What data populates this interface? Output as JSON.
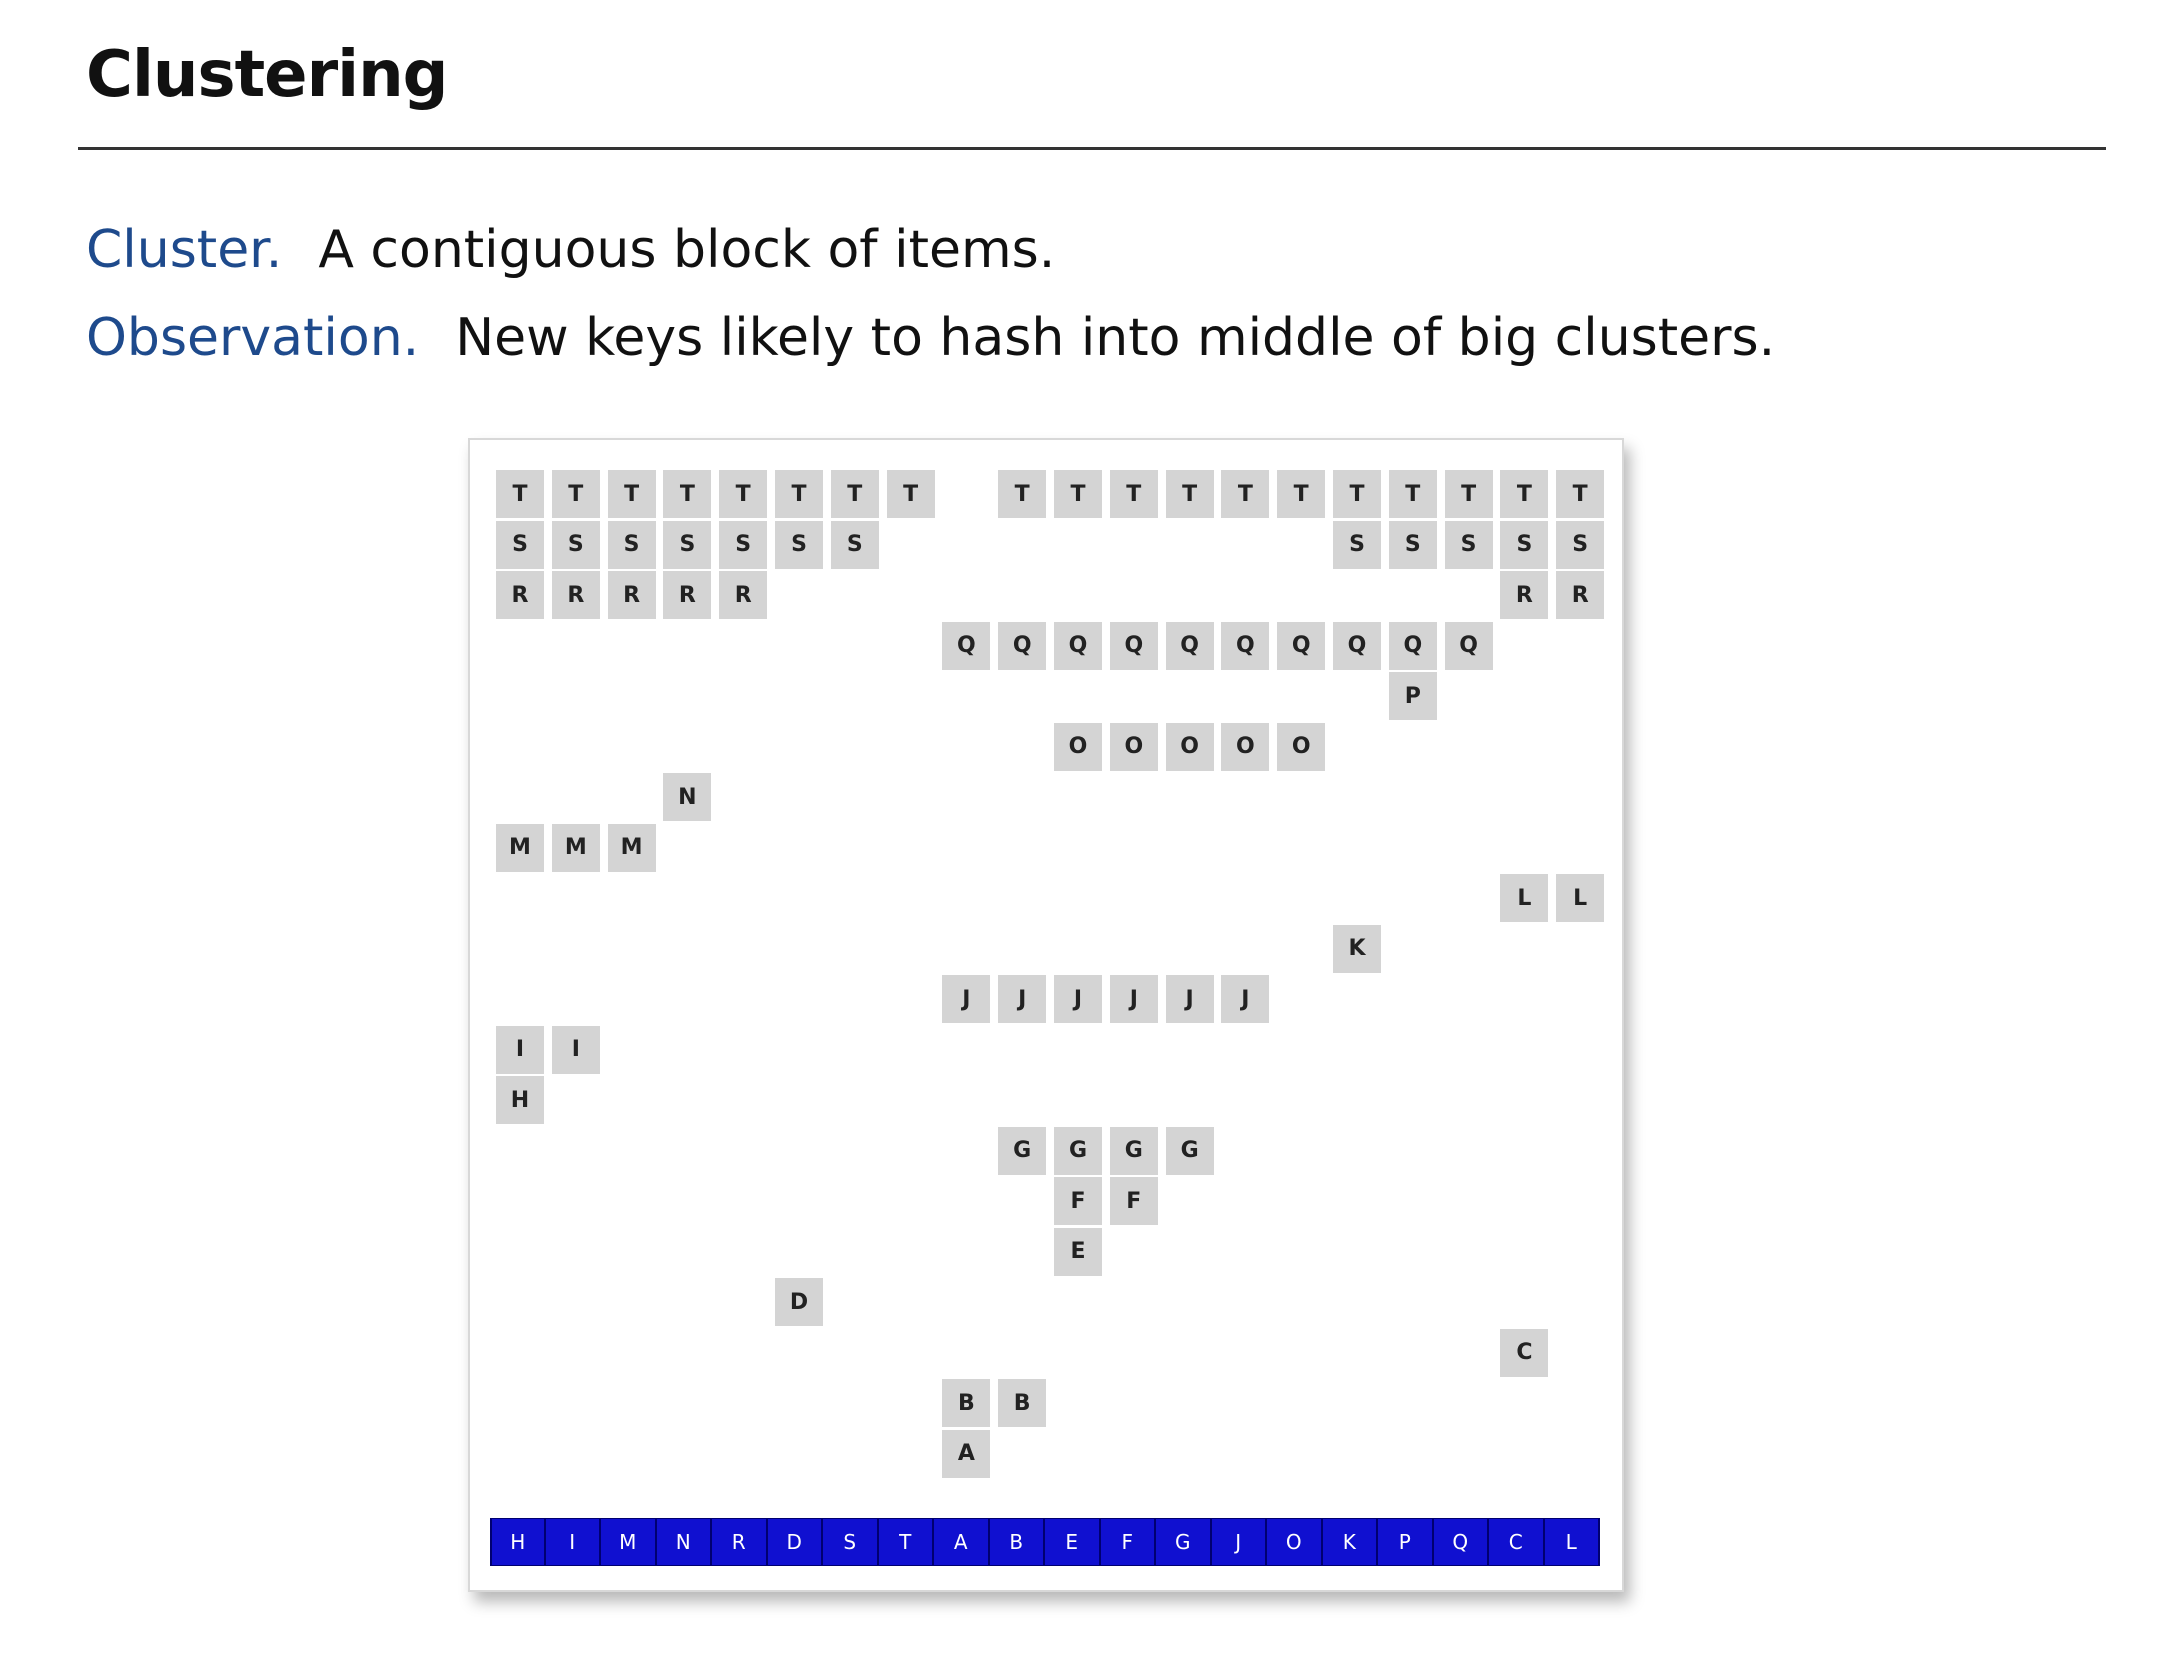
{
  "slide": {
    "title": "Clustering",
    "line1": {
      "term": "Cluster.",
      "text": "A contiguous block of items."
    },
    "line2": {
      "term": "Observation.",
      "text": "New keys likely to hash into middle of big clusters."
    }
  },
  "diagram": {
    "table_slots": [
      "H",
      "I",
      "M",
      "N",
      "R",
      "D",
      "S",
      "T",
      "A",
      "B",
      "E",
      "F",
      "G",
      "J",
      "O",
      "K",
      "P",
      "Q",
      "C",
      "L"
    ],
    "rows": [
      {
        "label": "T",
        "cols": [
          0,
          1,
          2,
          3,
          4,
          5,
          6,
          7,
          9,
          10,
          11,
          12,
          13,
          14,
          15,
          16,
          17,
          18,
          19
        ]
      },
      {
        "label": "S",
        "cols": [
          0,
          1,
          2,
          3,
          4,
          5,
          6,
          15,
          16,
          17,
          18,
          19
        ]
      },
      {
        "label": "R",
        "cols": [
          0,
          1,
          2,
          3,
          4,
          18,
          19
        ]
      },
      {
        "label": "Q",
        "cols": [
          8,
          9,
          10,
          11,
          12,
          13,
          14,
          15,
          16,
          17
        ]
      },
      {
        "label": "P",
        "cols": [
          16
        ]
      },
      {
        "label": "O",
        "cols": [
          10,
          11,
          12,
          13,
          14
        ]
      },
      {
        "label": "N",
        "cols": [
          3
        ]
      },
      {
        "label": "M",
        "cols": [
          0,
          1,
          2
        ]
      },
      {
        "label": "L",
        "cols": [
          18,
          19
        ]
      },
      {
        "label": "K",
        "cols": [
          15
        ]
      },
      {
        "label": "J",
        "cols": [
          8,
          9,
          10,
          11,
          12,
          13
        ]
      },
      {
        "label": "I",
        "cols": [
          0,
          1
        ]
      },
      {
        "label": "H",
        "cols": [
          0
        ]
      },
      {
        "label": "G",
        "cols": [
          9,
          10,
          11,
          12
        ]
      },
      {
        "label": "F",
        "cols": [
          10,
          11
        ]
      },
      {
        "label": "E",
        "cols": [
          10
        ]
      },
      {
        "label": "D",
        "cols": [
          5
        ]
      },
      {
        "label": "C",
        "cols": [
          18
        ]
      },
      {
        "label": "B",
        "cols": [
          8,
          9
        ]
      },
      {
        "label": "A",
        "cols": [
          8
        ]
      }
    ],
    "colors": {
      "cell": "#d4d4d4",
      "slot": "#1010d0",
      "term": "#1e4a8c"
    }
  }
}
